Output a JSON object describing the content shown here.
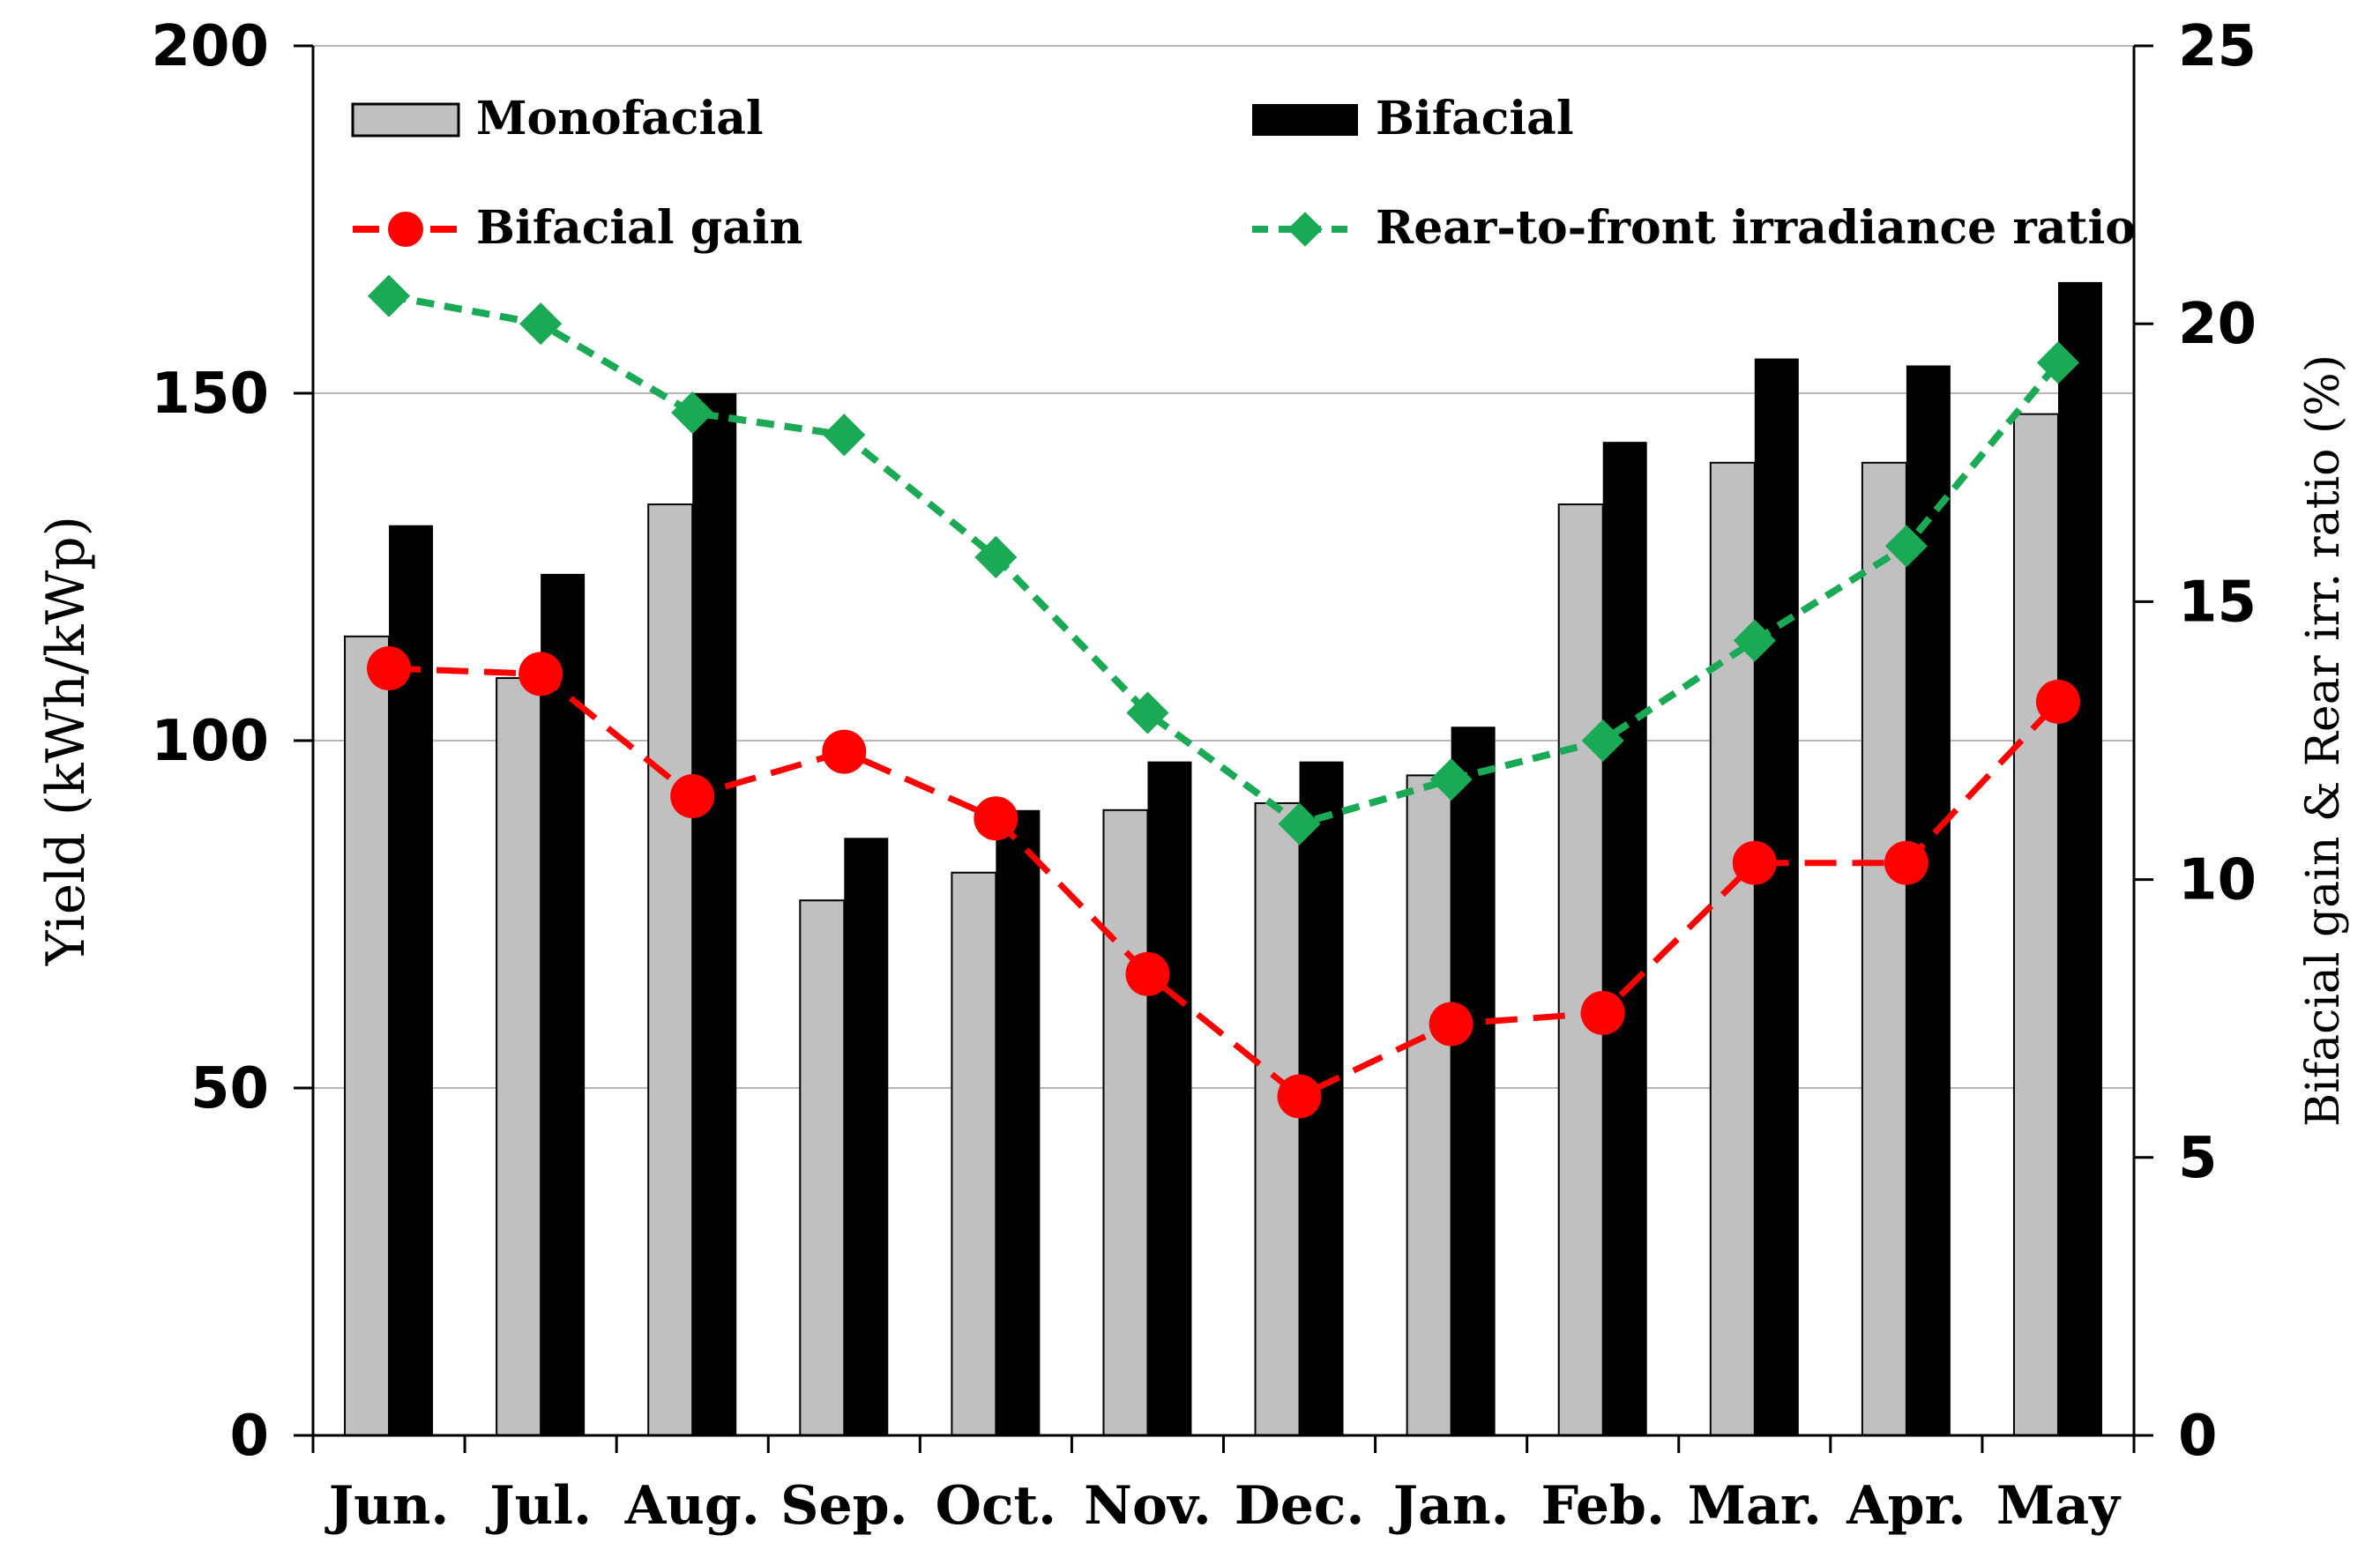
{
  "chart_data": {
    "type": "bar",
    "title": "",
    "categories": [
      "Jun.",
      "Jul.",
      "Aug.",
      "Sep.",
      "Oct.",
      "Nov.",
      "Dec.",
      "Jan.",
      "Feb.",
      "Mar.",
      "Apr.",
      "May"
    ],
    "ylabel": "Yield (kWh/kWp)",
    "y2label": "Bifacial gain & Rear irr. ratio (%)",
    "ylim": [
      0,
      200
    ],
    "y2lim": [
      0,
      25
    ],
    "yticks": [
      "0",
      "50",
      "100",
      "150",
      "200"
    ],
    "y2ticks": [
      "0",
      "5",
      "10",
      "15",
      "20",
      "25"
    ],
    "grid": true,
    "legend_position": "top",
    "series": [
      {
        "name": "Monofacial",
        "kind": "bar",
        "axis": "left",
        "color": "#c0c0c0",
        "values": [
          115,
          109,
          134,
          77,
          81,
          90,
          91,
          95,
          134,
          140,
          140,
          147
        ]
      },
      {
        "name": "Bifacial",
        "kind": "bar",
        "axis": "left",
        "color": "#000000",
        "values": [
          131,
          124,
          150,
          86,
          90,
          97,
          97,
          102,
          143,
          155,
          154,
          166
        ]
      },
      {
        "name": "Bifacial gain",
        "kind": "line",
        "axis": "right",
        "color": "#ff0000",
        "marker": "circle",
        "values": [
          13.8,
          13.7,
          11.5,
          12.3,
          11.1,
          8.3,
          6.1,
          7.4,
          7.6,
          10.3,
          10.3,
          13.2
        ]
      },
      {
        "name": "Rear-to-front irradiance ratio",
        "kind": "line",
        "axis": "right",
        "color": "#1aaa55",
        "marker": "diamond",
        "values": [
          20.5,
          20.0,
          18.4,
          18.0,
          15.8,
          13.0,
          11.0,
          11.8,
          12.5,
          14.3,
          16.0,
          19.3
        ]
      }
    ]
  }
}
